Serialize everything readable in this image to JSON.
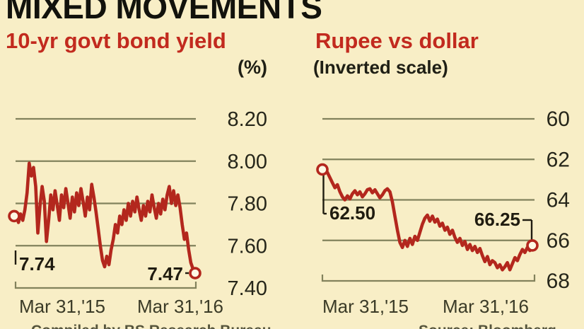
{
  "title": "MIXED MOVEMENTS",
  "credits": {
    "left": "Compiled by BS Research Bureau",
    "right": "Source: Bloomberg"
  },
  "colors": {
    "background": "#F8EEC6",
    "series_line": "#B3271D",
    "heading_red": "#C22A1E",
    "grid": "#82825C",
    "axis_text": "#26261A",
    "x_axis_text": "#3B3B27",
    "annotation_text": "#201C10",
    "marker_fill": "#FDF8E4",
    "title_text": "#12120C",
    "credit_text": "#55543C"
  },
  "chart_data": [
    {
      "type": "line",
      "title": "10-yr govt bond yield",
      "subtitle": "(%)",
      "x_ticks": [
        "Mar 31,'15",
        "Mar 31,'16"
      ],
      "y_ticks": [
        8.2,
        8.0,
        7.8,
        7.6,
        7.4
      ],
      "y_tick_labels": [
        "8.20",
        "8.00",
        "7.80",
        "7.60",
        "7.40"
      ],
      "ylim": [
        7.4,
        8.2
      ],
      "inverted": false,
      "grid": true,
      "legend": "none",
      "start_label": "7.74",
      "end_label": "7.47",
      "start_value": 7.74,
      "end_value": 7.47,
      "values": [
        7.74,
        7.76,
        7.71,
        7.75,
        7.72,
        7.77,
        7.85,
        7.99,
        7.93,
        7.97,
        7.88,
        7.66,
        7.79,
        7.88,
        7.81,
        7.62,
        7.72,
        7.84,
        7.77,
        7.86,
        7.79,
        7.72,
        7.84,
        7.78,
        7.87,
        7.8,
        7.73,
        7.83,
        7.76,
        7.85,
        7.79,
        7.87,
        7.81,
        7.74,
        7.83,
        7.77,
        7.89,
        7.83,
        7.76,
        7.68,
        7.6,
        7.53,
        7.5,
        7.55,
        7.51,
        7.58,
        7.63,
        7.7,
        7.66,
        7.74,
        7.7,
        7.77,
        7.72,
        7.8,
        7.74,
        7.81,
        7.76,
        7.83,
        7.77,
        7.72,
        7.79,
        7.74,
        7.81,
        7.76,
        7.84,
        7.78,
        7.73,
        7.8,
        7.75,
        7.82,
        7.77,
        7.84,
        7.88,
        7.8,
        7.86,
        7.79,
        7.84,
        7.78,
        7.7,
        7.63,
        7.66,
        7.58,
        7.52,
        7.49,
        7.47
      ]
    },
    {
      "type": "line",
      "title": "Rupee vs dollar",
      "subtitle": "(Inverted scale)",
      "x_ticks": [
        "Mar 31,'15",
        "Mar 31,'16"
      ],
      "y_ticks": [
        60,
        62,
        64,
        66,
        68
      ],
      "y_tick_labels": [
        "60",
        "62",
        "64",
        "66",
        "68"
      ],
      "ylim": [
        60,
        68
      ],
      "inverted": true,
      "grid": true,
      "legend": "none",
      "start_label": "62.50",
      "end_label": "66.25",
      "start_value": 62.5,
      "end_value": 66.25,
      "values": [
        62.5,
        62.42,
        62.65,
        62.9,
        63.15,
        63.4,
        63.25,
        63.6,
        63.85,
        64.0,
        63.8,
        63.95,
        63.7,
        63.55,
        63.75,
        63.6,
        63.85,
        63.7,
        63.5,
        63.45,
        63.65,
        63.5,
        63.7,
        63.9,
        63.75,
        63.55,
        63.45,
        63.6,
        64.1,
        64.8,
        65.5,
        66.1,
        66.35,
        66.0,
        66.3,
        65.9,
        66.2,
        65.8,
        66.0,
        65.6,
        65.2,
        64.9,
        64.75,
        65.05,
        64.8,
        65.1,
        64.95,
        65.3,
        65.15,
        65.5,
        65.35,
        65.7,
        65.5,
        65.85,
        66.1,
        65.9,
        66.25,
        66.05,
        66.45,
        66.2,
        66.5,
        66.3,
        66.6,
        66.4,
        66.75,
        67.05,
        66.8,
        67.2,
        67.0,
        67.1,
        67.35,
        67.2,
        67.45,
        67.3,
        67.1,
        67.45,
        67.15,
        66.85,
        67.0,
        66.7,
        66.45,
        66.6,
        66.35,
        66.5,
        66.25
      ]
    }
  ]
}
